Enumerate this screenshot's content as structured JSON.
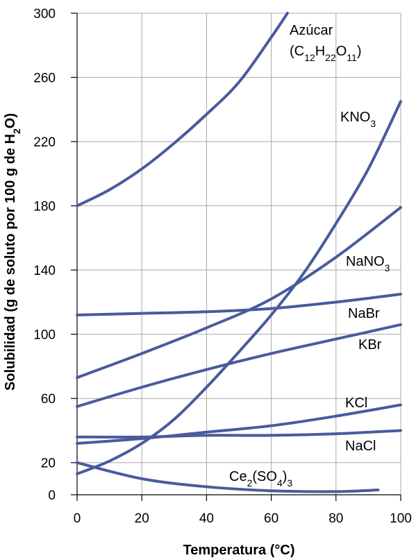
{
  "chart_data": {
    "type": "line",
    "xlabel": "Temperatura (°C)",
    "ylabel": "Solubilidad (g de soluto por 100 g de H2O)",
    "ylabel_parts": [
      {
        "t": "Solubilidad (g de soluto por 100 g de H"
      },
      {
        "t": "2",
        "sub": true
      },
      {
        "t": "O)"
      }
    ],
    "xlim": [
      0,
      100
    ],
    "ylim": [
      0,
      300
    ],
    "x_ticks": [
      0,
      20,
      40,
      60,
      80,
      100
    ],
    "y_ticks": [
      0,
      20,
      60,
      100,
      140,
      180,
      220,
      260,
      300
    ],
    "x_tick_labels": [
      "0",
      "20",
      "40",
      "60",
      "80",
      "100"
    ],
    "y_tick_labels": [
      "0",
      "20",
      "60",
      "100",
      "140",
      "180",
      "220",
      "260",
      "300"
    ],
    "grid": true,
    "line_color": "#4a5a9c",
    "series": [
      {
        "name": "Azúcar (C12H22O11)",
        "label_lines": [
          [
            {
              "t": "Azúcar"
            }
          ],
          [
            {
              "t": "(C"
            },
            {
              "t": "12",
              "sub": true
            },
            {
              "t": "H"
            },
            {
              "t": "22",
              "sub": true
            },
            {
              "t": "O"
            },
            {
              "t": "11",
              "sub": true
            },
            {
              "t": ")"
            }
          ]
        ],
        "x": [
          0,
          10,
          20,
          30,
          40,
          50,
          60,
          65
        ],
        "y": [
          180,
          190,
          203,
          219,
          237,
          257,
          285,
          300
        ]
      },
      {
        "name": "KNO3",
        "label_lines": [
          [
            {
              "t": "KNO"
            },
            {
              "t": "3",
              "sub": true
            }
          ]
        ],
        "x": [
          0,
          10,
          20,
          30,
          40,
          50,
          60,
          70,
          80,
          90,
          100
        ],
        "y": [
          13,
          21,
          32,
          47,
          67,
          89,
          112,
          138,
          169,
          203,
          245
        ]
      },
      {
        "name": "NaNO3",
        "label_lines": [
          [
            {
              "t": "NaNO"
            },
            {
              "t": "3",
              "sub": true
            }
          ]
        ],
        "x": [
          0,
          20,
          40,
          60,
          80,
          100
        ],
        "y": [
          73,
          88,
          104,
          122,
          148,
          179
        ]
      },
      {
        "name": "NaBr",
        "label_lines": [
          [
            {
              "t": "NaBr"
            }
          ]
        ],
        "x": [
          0,
          20,
          40,
          60,
          80,
          100
        ],
        "y": [
          112,
          113,
          114,
          116,
          120,
          125
        ]
      },
      {
        "name": "KBr",
        "label_lines": [
          [
            {
              "t": "KBr"
            }
          ]
        ],
        "x": [
          0,
          20,
          40,
          60,
          80,
          100
        ],
        "y": [
          55,
          67,
          78,
          88,
          97,
          106
        ]
      },
      {
        "name": "KCl",
        "label_lines": [
          [
            {
              "t": "KCl"
            }
          ]
        ],
        "x": [
          0,
          20,
          40,
          60,
          80,
          100
        ],
        "y": [
          32,
          35,
          39,
          43,
          49,
          56
        ]
      },
      {
        "name": "NaCl",
        "label_lines": [
          [
            {
              "t": "NaCl"
            }
          ]
        ],
        "x": [
          0,
          20,
          40,
          60,
          80,
          100
        ],
        "y": [
          36,
          36,
          37,
          37,
          38,
          40
        ]
      },
      {
        "name": "Ce2(SO4)3",
        "label_lines": [
          [
            {
              "t": "Ce"
            },
            {
              "t": "2",
              "sub": true
            },
            {
              "t": "(SO"
            },
            {
              "t": "4",
              "sub": true
            },
            {
              "t": ")"
            },
            {
              "t": "3",
              "sub": true
            }
          ]
        ],
        "x": [
          0,
          20,
          40,
          60,
          80,
          93
        ],
        "y": [
          20,
          10,
          5,
          2.5,
          2,
          3
        ]
      }
    ]
  }
}
